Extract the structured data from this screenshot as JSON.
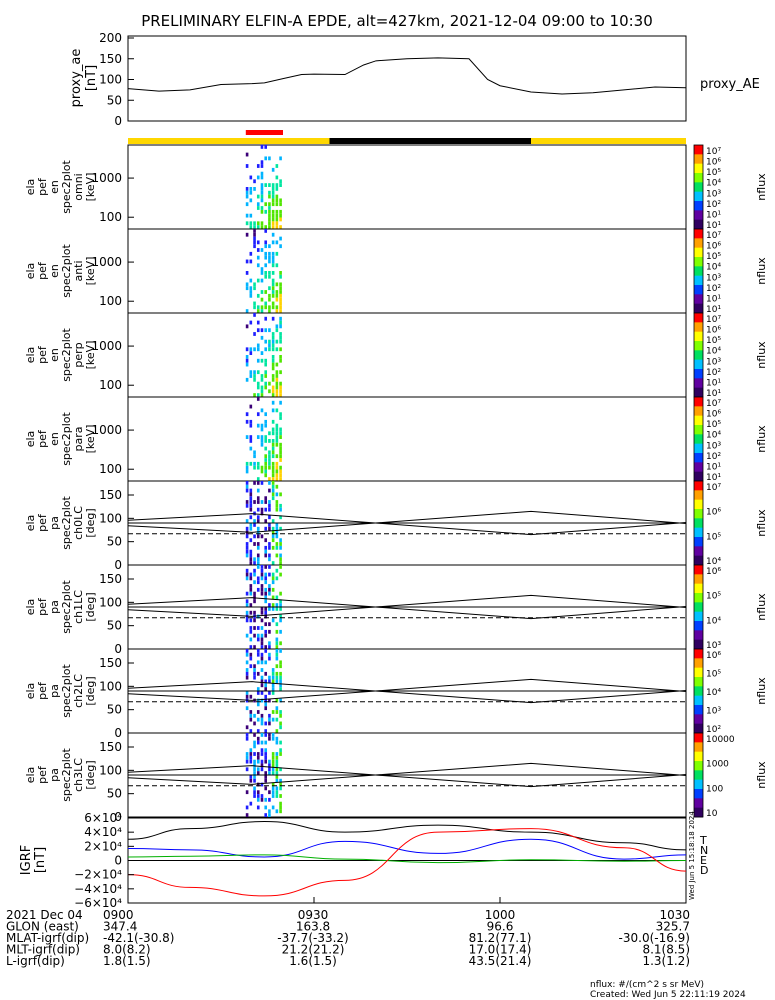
{
  "title": "PRELIMINARY ELFIN-A EPDE, alt=427km, 2021-12-04 09:00 to 10:30",
  "proxy_ae": {
    "ylabel": "proxy_ae",
    "yunit": "[nT]",
    "legend": "proxy_AE",
    "yticks": [
      "200",
      "150",
      "100",
      "50",
      "0"
    ]
  },
  "energy_panels": [
    {
      "ylabel": [
        "ela",
        "pef",
        "en",
        "spec2plot",
        "omni",
        "[keV]"
      ],
      "yticks": [
        "1000",
        "100"
      ]
    },
    {
      "ylabel": [
        "ela",
        "pef",
        "en",
        "spec2plot",
        "anti",
        "[keV]"
      ],
      "yticks": [
        "1000",
        "100"
      ]
    },
    {
      "ylabel": [
        "ela",
        "pef",
        "en",
        "spec2plot",
        "perp",
        "[keV]"
      ],
      "yticks": [
        "1000",
        "100"
      ]
    },
    {
      "ylabel": [
        "ela",
        "pef",
        "en",
        "spec2plot",
        "para",
        "[keV]"
      ],
      "yticks": [
        "1000",
        "100"
      ]
    }
  ],
  "pa_panels": [
    {
      "ylabel": [
        "ela",
        "pef",
        "pa",
        "spec2plot",
        "ch0LC",
        "[deg]"
      ],
      "yticks": [
        "150",
        "100",
        "50",
        "0"
      ]
    },
    {
      "ylabel": [
        "ela",
        "pef",
        "pa",
        "spec2plot",
        "ch1LC",
        "[deg]"
      ],
      "yticks": [
        "150",
        "100",
        "50",
        "0"
      ]
    },
    {
      "ylabel": [
        "ela",
        "pef",
        "pa",
        "spec2plot",
        "ch2LC",
        "[deg]"
      ],
      "yticks": [
        "150",
        "100",
        "50",
        "0"
      ]
    },
    {
      "ylabel": [
        "ela",
        "pef",
        "pa",
        "spec2plot",
        "ch3LC",
        "[deg]"
      ],
      "yticks": [
        "150",
        "100",
        "50",
        "0"
      ]
    }
  ],
  "colorbars": [
    {
      "ticks": [
        "10⁷",
        "10⁶",
        "10⁵",
        "10⁴",
        "10³",
        "10²",
        "10¹",
        "10¹"
      ],
      "unit": "nflux"
    },
    {
      "ticks": [
        "10⁷",
        "10⁶",
        "10⁵",
        "10⁴",
        "10³",
        "10²",
        "10¹",
        "10¹"
      ],
      "unit": "nflux"
    },
    {
      "ticks": [
        "10⁷",
        "10⁶",
        "10⁵",
        "10⁴",
        "10³",
        "10²",
        "10¹",
        "10¹"
      ],
      "unit": "nflux"
    },
    {
      "ticks": [
        "10⁷",
        "10⁶",
        "10⁵",
        "10⁴",
        "10³",
        "10²",
        "10¹",
        "10¹"
      ],
      "unit": "nflux"
    },
    {
      "ticks": [
        "10⁷",
        "10⁶",
        "10⁵",
        "10⁴"
      ],
      "unit": "nflux"
    },
    {
      "ticks": [
        "10⁶",
        "10⁵",
        "10⁴",
        "10³"
      ],
      "unit": "nflux"
    },
    {
      "ticks": [
        "10⁶",
        "10⁵",
        "10⁴",
        "10³",
        "10²"
      ],
      "unit": "nflux"
    },
    {
      "ticks": [
        "10000",
        "1000",
        "100",
        "10"
      ],
      "unit": "nflux"
    }
  ],
  "igrf": {
    "ylabel": "IGRF",
    "yunit": "[nT]",
    "yticks": [
      "6×10⁴",
      "4×10⁴",
      "2×10⁴",
      "0",
      "−2×10⁴",
      "−4×10⁴",
      "−6×10⁴"
    ],
    "legend": [
      {
        "label": "T",
        "color": "#000000"
      },
      {
        "label": "N",
        "color": "#0000ff"
      },
      {
        "label": "E",
        "color": "#00b000"
      },
      {
        "label": "D",
        "color": "#ff0000"
      }
    ],
    "side_note": "Wed Jun 5 15:18:18 2024"
  },
  "orbit_bar": {
    "colors": {
      "day": "#ffd700",
      "night": "#000000",
      "science": "#ff0000"
    }
  },
  "footer": {
    "rows": [
      {
        "label": "2021 Dec 04",
        "values": [
          "0900",
          "0930",
          "1000",
          "1030"
        ]
      },
      {
        "label": "GLON (east)",
        "values": [
          "347.4",
          "163.8",
          "96.6",
          "325.7"
        ]
      },
      {
        "label": "MLAT-igrf(dip)",
        "values": [
          "-42.1(-30.8)",
          "-37.7(-33.2)",
          "81.2(77.1)",
          "-30.0(-16.9)"
        ]
      },
      {
        "label": "MLT-igrf(dip)",
        "values": [
          "8.0(8.2)",
          "21.2(21.2)",
          "17.0(17.4)",
          "8.1(8.5)"
        ]
      },
      {
        "label": "L-igrf(dip)",
        "values": [
          "1.8(1.5)",
          "1.6(1.5)",
          "43.5(21.4)",
          "1.3(1.2)"
        ]
      }
    ],
    "nflux_note": "nflux: #/(cm^2 s sr MeV)",
    "created": "Created: Wed Jun  5 22:11:19 2024"
  },
  "chart_data": {
    "type": "spectrogram",
    "x_range": [
      "09:00",
      "10:30"
    ],
    "proxy_ae": {
      "type": "line",
      "x_minutes": [
        0,
        5,
        10,
        15,
        20,
        22,
        25,
        28,
        30,
        35,
        38,
        40,
        45,
        50,
        55,
        58,
        60,
        65,
        70,
        75,
        80,
        85,
        90
      ],
      "values": [
        78,
        72,
        75,
        88,
        90,
        92,
        102,
        112,
        113,
        112,
        135,
        145,
        150,
        152,
        150,
        100,
        85,
        70,
        65,
        68,
        75,
        82,
        80
      ],
      "ylim": [
        0,
        200
      ]
    },
    "orbit_bar_segments": [
      {
        "start_min": 0,
        "end_min": 32.5,
        "color": "day"
      },
      {
        "start_min": 32.5,
        "end_min": 65,
        "color": "night"
      },
      {
        "start_min": 65,
        "end_min": 90,
        "color": "day"
      },
      {
        "start_min": 19,
        "end_min": 25,
        "color": "science",
        "row": "top"
      }
    ],
    "science_zone_minutes": [
      19,
      25
    ],
    "loss_cone_line": {
      "x_minutes": [
        0,
        20,
        65,
        90
      ],
      "values": [
        96,
        110,
        65,
        91
      ]
    },
    "anti_loss_cone_line": {
      "x_minutes": [
        0,
        20,
        65,
        90
      ],
      "values": [
        84,
        70,
        115,
        89
      ]
    },
    "reference_lines": {
      "solid": 90,
      "dashed": 67
    },
    "energy_ylim": [
      50,
      7000
    ],
    "pa_ylim": [
      0,
      180
    ],
    "igrf": {
      "ylim": [
        -60000,
        60000
      ],
      "series": [
        {
          "name": "T",
          "x_minutes": [
            0,
            10,
            22,
            35,
            50,
            65,
            80,
            90
          ],
          "values": [
            30000,
            45000,
            55000,
            40000,
            50000,
            40000,
            25000,
            15000
          ]
        },
        {
          "name": "N",
          "x_minutes": [
            0,
            10,
            22,
            35,
            50,
            65,
            80,
            90
          ],
          "values": [
            17000,
            15000,
            5000,
            27000,
            10000,
            30000,
            2000,
            8000
          ]
        },
        {
          "name": "E",
          "x_minutes": [
            0,
            10,
            22,
            35,
            50,
            65,
            80,
            90
          ],
          "values": [
            5000,
            6000,
            8000,
            2000,
            -3000,
            1000,
            -1000,
            0
          ]
        },
        {
          "name": "D",
          "x_minutes": [
            0,
            10,
            22,
            35,
            50,
            65,
            80,
            90
          ],
          "values": [
            -20000,
            -38000,
            -50000,
            -28000,
            40000,
            45000,
            18000,
            -15000
          ]
        }
      ]
    }
  }
}
